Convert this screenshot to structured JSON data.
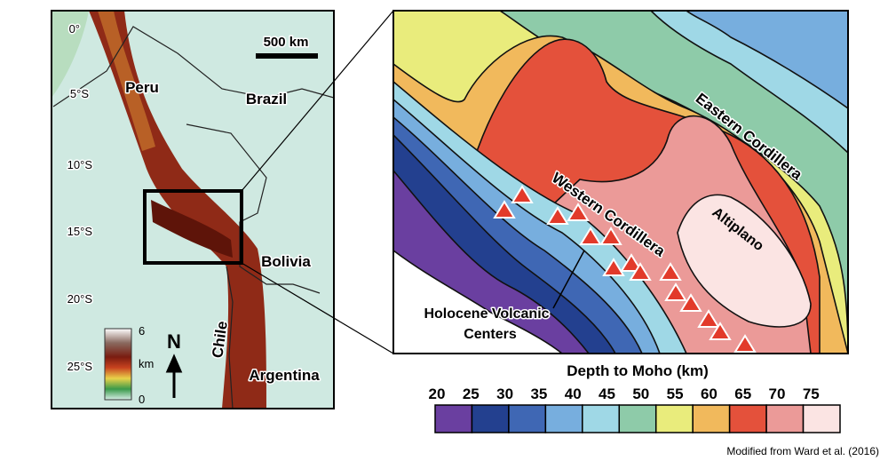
{
  "left_map": {
    "latitude_labels": [
      "0°",
      "5°S",
      "10°S",
      "15°S",
      "20°S",
      "25°S"
    ],
    "countries": [
      "Peru",
      "Brazil",
      "Bolivia",
      "Chile",
      "Argentina"
    ],
    "scale_bar": "500 km",
    "elevation_legend": {
      "max": "6",
      "unit": "km",
      "min": "0"
    },
    "north_arrow": "N"
  },
  "inset": {
    "labels": [
      "Eastern Cordillera",
      "Western Cordillera",
      "Altiplano"
    ],
    "annotation": [
      "Holocene Volcanic",
      "Centers"
    ]
  },
  "colorbar": {
    "title": "Depth to Moho (km)",
    "ticks": [
      20,
      25,
      30,
      35,
      40,
      45,
      50,
      55,
      60,
      65,
      70,
      75
    ],
    "colors": [
      "#6a3fa0",
      "#23408f",
      "#3f67b4",
      "#77aede",
      "#9fd8e6",
      "#8ecba9",
      "#e9ec7c",
      "#f1b95c",
      "#e4513b",
      "#eb9a98",
      "#fbe4e3"
    ]
  },
  "credit": "Modified from Ward et al. (2016)"
}
